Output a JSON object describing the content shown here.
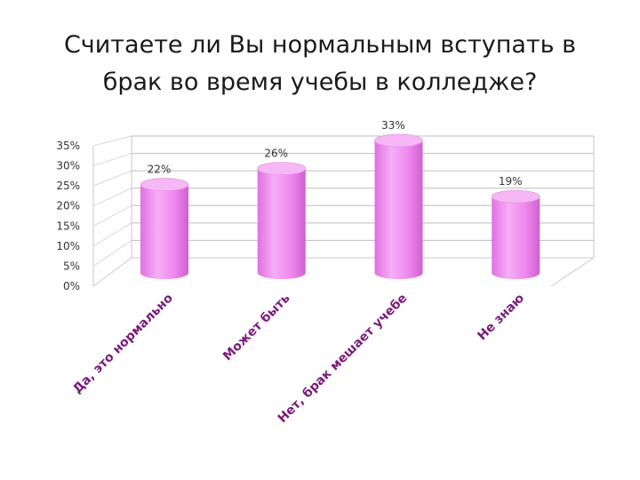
{
  "title_lines": [
    "Считаете ли Вы нормальным вступать в",
    "брак во время учебы в колледже?"
  ],
  "chart_data": {
    "type": "bar",
    "style": "3d-cylinder",
    "title": "Считаете ли Вы нормальным вступать в брак во время учебы в колледже?",
    "categories": [
      "Да, это нормально",
      "Может быть",
      "Нет, брак мешает учебе",
      "Не знаю"
    ],
    "values": [
      22,
      26,
      33,
      19
    ],
    "data_labels": [
      "22%",
      "26%",
      "33%",
      "19%"
    ],
    "y_ticks": [
      "0%",
      "5%",
      "10%",
      "15%",
      "20%",
      "25%",
      "30%",
      "35%"
    ],
    "ylim": [
      0,
      35
    ],
    "unit": "%",
    "grid": true,
    "legend": "none",
    "bar_color": "#ee88ee"
  }
}
